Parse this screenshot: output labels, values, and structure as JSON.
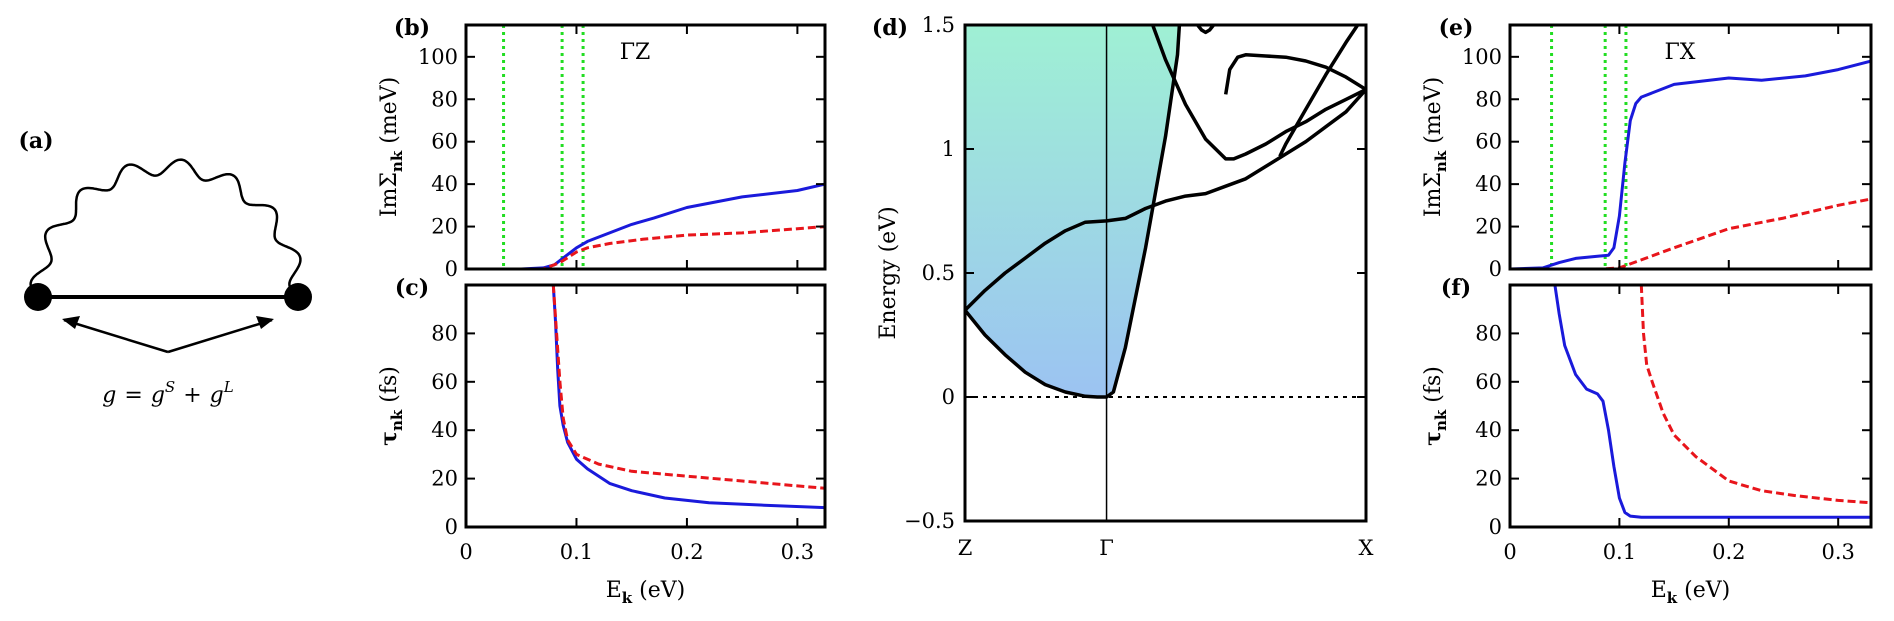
{
  "colors": {
    "blue": "#1a1adb",
    "red": "#e8151b",
    "green": "#22dd22",
    "band_top": "#9ff0d4",
    "band_bottom": "#9cc3f2",
    "black": "#000000"
  },
  "chart_data": [
    {
      "panel": "(a)",
      "type": "diagram",
      "label": "(a)",
      "formula": {
        "lhs": "g",
        "eq": "=",
        "t1": "g",
        "s1": "S",
        "plus": "+",
        "t2": "g",
        "s2": "L"
      }
    },
    {
      "panel": "(b)",
      "type": "line",
      "label": "(b)",
      "annotation": "ΓZ",
      "xlim": [
        0,
        0.325
      ],
      "ylim": [
        0,
        115
      ],
      "xticks": [
        0,
        0.1,
        0.2,
        0.3
      ],
      "yticks": [
        0,
        20,
        40,
        60,
        80,
        100
      ],
      "ylabel_base": "ImΣ",
      "ylabel_sub": "nk",
      "ylabel_unit": "(meV)",
      "vlines": [
        0.034,
        0.087,
        0.106
      ],
      "series": [
        {
          "name": "blue",
          "color": "blue",
          "dashed": false,
          "x": [
            0,
            0.05,
            0.07,
            0.08,
            0.09,
            0.1,
            0.11,
            0.13,
            0.15,
            0.17,
            0.2,
            0.25,
            0.3,
            0.325
          ],
          "y": [
            0,
            0,
            0.5,
            2,
            6,
            10,
            13,
            17,
            21,
            24,
            29,
            34,
            37,
            40
          ]
        },
        {
          "name": "red",
          "color": "red",
          "dashed": true,
          "x": [
            0,
            0.07,
            0.085,
            0.1,
            0.11,
            0.13,
            0.16,
            0.2,
            0.25,
            0.3,
            0.325
          ],
          "y": [
            0,
            0,
            3,
            8,
            10,
            12,
            14,
            16,
            17,
            19,
            20
          ]
        }
      ]
    },
    {
      "panel": "(c)",
      "type": "line",
      "label": "(c)",
      "xlim": [
        0,
        0.325
      ],
      "ylim": [
        0,
        100
      ],
      "xticks": [
        0,
        0.1,
        0.2,
        0.3
      ],
      "xtick_labels": [
        "0",
        "0.1",
        "0.2",
        "0.3"
      ],
      "yticks": [
        0,
        20,
        40,
        60,
        80
      ],
      "xlabel_base": "E",
      "xlabel_sub": "k",
      "xlabel_unit": "(eV)",
      "ylabel_base": "τ",
      "ylabel_sub": "nk",
      "ylabel_unit": "(fs)",
      "series": [
        {
          "name": "blue",
          "color": "blue",
          "dashed": false,
          "x": [
            0.079,
            0.081,
            0.083,
            0.085,
            0.088,
            0.092,
            0.1,
            0.11,
            0.13,
            0.15,
            0.18,
            0.22,
            0.27,
            0.325
          ],
          "y": [
            100,
            85,
            65,
            50,
            42,
            35,
            28,
            24,
            18,
            15,
            12,
            10,
            9,
            8
          ]
        },
        {
          "name": "red",
          "color": "red",
          "dashed": true,
          "x": [
            0.079,
            0.082,
            0.085,
            0.088,
            0.092,
            0.1,
            0.12,
            0.15,
            0.2,
            0.25,
            0.3,
            0.325
          ],
          "y": [
            100,
            80,
            60,
            45,
            36,
            30,
            26,
            23,
            21,
            19,
            17,
            16
          ]
        }
      ]
    },
    {
      "panel": "(d)",
      "type": "line",
      "label": "(d)",
      "xlim": [
        0,
        1
      ],
      "ylim": [
        -0.5,
        1.5
      ],
      "xtick_pos": [
        0,
        0.353,
        1
      ],
      "xtick_labels": [
        "Z",
        "Γ",
        "X"
      ],
      "yticks": [
        -0.5,
        0,
        0.5,
        1,
        1.5
      ],
      "ytick_labels": [
        "−0.5",
        "0",
        "0.5",
        "1",
        "1.5"
      ],
      "ylabel": "Energy (eV)",
      "zero_line": 0,
      "gamma_line": 0.353,
      "shade_lower_boundary": {
        "x": [
          0,
          0.05,
          0.1,
          0.15,
          0.2,
          0.25,
          0.3,
          0.33,
          0.353,
          0.37,
          0.4,
          0.45,
          0.5,
          0.53,
          0.5346
        ],
        "y": [
          0.35,
          0.25,
          0.17,
          0.1,
          0.05,
          0.02,
          0.003,
          0.0,
          0.0,
          0.02,
          0.2,
          0.6,
          1.05,
          1.38,
          1.5
        ]
      },
      "bands": [
        {
          "x": [
            0,
            0.05,
            0.1,
            0.15,
            0.2,
            0.25,
            0.3,
            0.33,
            0.353,
            0.37,
            0.4,
            0.45,
            0.5,
            0.53,
            0.5346
          ],
          "y": [
            0.35,
            0.25,
            0.17,
            0.1,
            0.05,
            0.02,
            0.003,
            0.0,
            0.0,
            0.02,
            0.2,
            0.6,
            1.05,
            1.38,
            1.5
          ]
        },
        {
          "x": [
            0,
            0.05,
            0.1,
            0.15,
            0.2,
            0.25,
            0.3,
            0.353,
            0.4,
            0.45,
            0.5,
            0.55,
            0.6,
            0.65,
            0.7,
            0.75,
            0.8,
            0.85,
            0.9,
            0.95,
            1.0
          ],
          "y": [
            0.35,
            0.43,
            0.5,
            0.56,
            0.62,
            0.67,
            0.705,
            0.71,
            0.72,
            0.76,
            0.79,
            0.81,
            0.82,
            0.85,
            0.88,
            0.93,
            0.98,
            1.03,
            1.09,
            1.15,
            1.24
          ]
        },
        {
          "x": [
            0.468,
            0.5,
            0.55,
            0.6,
            0.65,
            0.67,
            0.7,
            0.75,
            0.8,
            0.85,
            0.9,
            0.95,
            1.0
          ],
          "y": [
            1.5,
            1.36,
            1.18,
            1.04,
            0.96,
            0.96,
            0.98,
            1.02,
            1.07,
            1.11,
            1.16,
            1.2,
            1.24
          ]
        },
        {
          "x": [
            0.65,
            0.66,
            0.68,
            0.7,
            0.75,
            0.8,
            0.85,
            0.9,
            0.95,
            1.0
          ],
          "y": [
            1.22,
            1.32,
            1.37,
            1.38,
            1.375,
            1.37,
            1.355,
            1.33,
            1.29,
            1.24
          ]
        },
        {
          "x": [
            0.785,
            0.8,
            0.85,
            0.9,
            0.95,
            1.0
          ],
          "y": [
            0.97,
            1.02,
            1.16,
            1.3,
            1.43,
            1.55
          ]
        },
        {
          "x": [
            0.58,
            0.59,
            0.6,
            0.61,
            0.62
          ],
          "y": [
            1.5,
            1.48,
            1.47,
            1.48,
            1.5
          ]
        }
      ]
    },
    {
      "panel": "(e)",
      "type": "line",
      "label": "(e)",
      "annotation": "ΓX",
      "xlim": [
        0,
        0.33
      ],
      "ylim": [
        0,
        115
      ],
      "xticks": [
        0,
        0.1,
        0.2,
        0.3
      ],
      "yticks": [
        0,
        20,
        40,
        60,
        80,
        100
      ],
      "ylabel_base": "ImΣ",
      "ylabel_sub": "nk",
      "ylabel_unit": "(meV)",
      "vlines": [
        0.038,
        0.087,
        0.106
      ],
      "series": [
        {
          "name": "blue",
          "color": "blue",
          "dashed": false,
          "x": [
            0,
            0.03,
            0.045,
            0.06,
            0.08,
            0.09,
            0.095,
            0.1,
            0.105,
            0.11,
            0.115,
            0.12,
            0.13,
            0.15,
            0.2,
            0.23,
            0.27,
            0.3,
            0.33
          ],
          "y": [
            0,
            0.5,
            3,
            5,
            6,
            6.5,
            10,
            25,
            50,
            70,
            78,
            81,
            83,
            87,
            90,
            89,
            91,
            94,
            98
          ]
        },
        {
          "name": "red",
          "color": "red",
          "dashed": true,
          "x": [
            0,
            0.085,
            0.1,
            0.15,
            0.2,
            0.25,
            0.3,
            0.33
          ],
          "y": [
            0,
            0,
            0.5,
            10,
            19,
            24,
            30,
            33
          ]
        }
      ]
    },
    {
      "panel": "(f)",
      "type": "line",
      "label": "(f)",
      "xlim": [
        0,
        0.33
      ],
      "ylim": [
        0,
        100
      ],
      "xticks": [
        0,
        0.1,
        0.2,
        0.3
      ],
      "xtick_labels": [
        "0",
        "0.1",
        "0.2",
        "0.3"
      ],
      "yticks": [
        0,
        20,
        40,
        60,
        80
      ],
      "xlabel_base": "E",
      "xlabel_sub": "k",
      "xlabel_unit": "(eV)",
      "ylabel_base": "τ",
      "ylabel_sub": "nk",
      "ylabel_unit": "(fs)",
      "series": [
        {
          "name": "blue",
          "color": "blue",
          "dashed": false,
          "x": [
            0.041,
            0.045,
            0.05,
            0.06,
            0.07,
            0.08,
            0.085,
            0.09,
            0.095,
            0.1,
            0.105,
            0.11,
            0.12,
            0.15,
            0.2,
            0.25,
            0.3,
            0.33
          ],
          "y": [
            100,
            88,
            75,
            63,
            57,
            55,
            52,
            40,
            25,
            12,
            6,
            4.5,
            4,
            4,
            4,
            4,
            4,
            4
          ]
        },
        {
          "name": "red",
          "color": "red",
          "dashed": true,
          "x": [
            0.12,
            0.122,
            0.125,
            0.13,
            0.14,
            0.15,
            0.17,
            0.2,
            0.23,
            0.26,
            0.3,
            0.33
          ],
          "y": [
            100,
            80,
            67,
            60,
            47,
            38,
            29,
            19,
            15,
            13,
            11,
            10
          ]
        }
      ]
    }
  ]
}
